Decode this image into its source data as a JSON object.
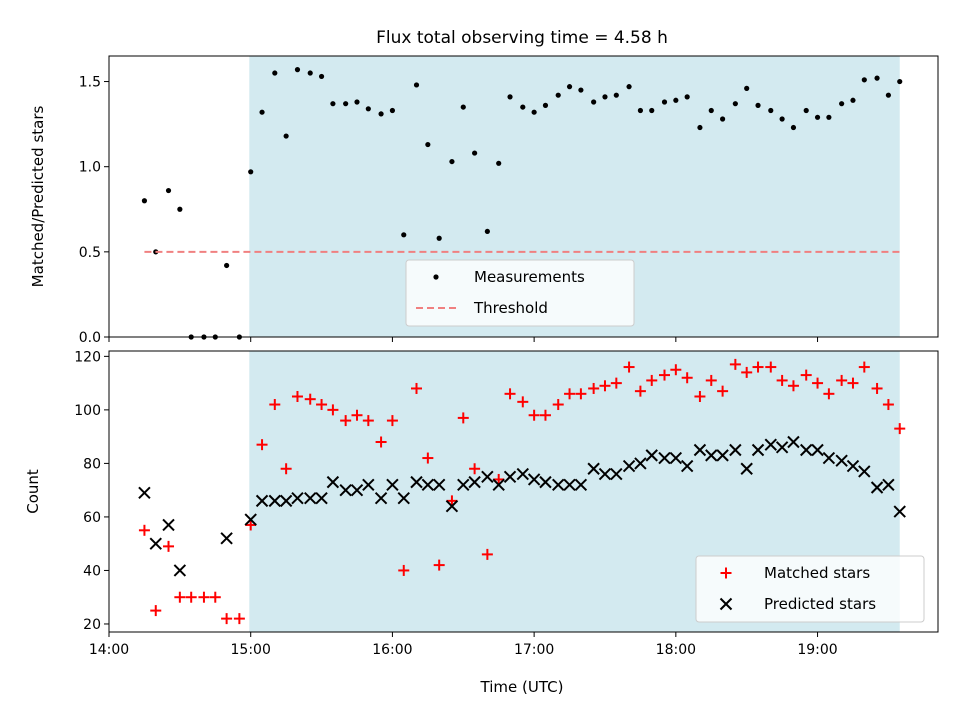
{
  "figure": {
    "title": "Flux total observing time = 4.58 h",
    "xlabel": "Time (UTC)",
    "xlim": [
      14.0,
      19.85
    ],
    "xticks": [
      14,
      15,
      16,
      17,
      18,
      19
    ],
    "xtick_labels": [
      "14:00",
      "15:00",
      "16:00",
      "17:00",
      "18:00",
      "19:00"
    ],
    "shaded_span": {
      "from": 14.99,
      "to": 19.58,
      "color": "#d3eaf0"
    }
  },
  "chart_data": [
    {
      "type": "scatter",
      "ylabel": "Matched/Predicted stars",
      "ylim": [
        0,
        1.65
      ],
      "yticks": [
        0.0,
        0.5,
        1.0,
        1.5
      ],
      "ytick_labels": [
        "0.0",
        "0.5",
        "1.0",
        "1.5"
      ],
      "legend_position": "lower-center",
      "series": [
        {
          "name": "Measurements",
          "color": "#000000",
          "marker": "dot",
          "points": [
            [
              14.25,
              0.8
            ],
            [
              14.33,
              0.5
            ],
            [
              14.42,
              0.86
            ],
            [
              14.5,
              0.75
            ],
            [
              14.58,
              0.0
            ],
            [
              14.67,
              0.0
            ],
            [
              14.75,
              0.0
            ],
            [
              14.83,
              0.42
            ],
            [
              14.92,
              0.0
            ],
            [
              15.0,
              0.97
            ],
            [
              15.08,
              1.32
            ],
            [
              15.17,
              1.55
            ],
            [
              15.25,
              1.18
            ],
            [
              15.33,
              1.57
            ],
            [
              15.42,
              1.55
            ],
            [
              15.5,
              1.53
            ],
            [
              15.58,
              1.37
            ],
            [
              15.67,
              1.37
            ],
            [
              15.75,
              1.38
            ],
            [
              15.83,
              1.34
            ],
            [
              15.92,
              1.31
            ],
            [
              16.0,
              1.33
            ],
            [
              16.08,
              0.6
            ],
            [
              16.17,
              1.48
            ],
            [
              16.25,
              1.13
            ],
            [
              16.33,
              0.58
            ],
            [
              16.42,
              1.03
            ],
            [
              16.5,
              1.35
            ],
            [
              16.58,
              1.08
            ],
            [
              16.67,
              0.62
            ],
            [
              16.75,
              1.02
            ],
            [
              16.83,
              1.41
            ],
            [
              16.92,
              1.35
            ],
            [
              17.0,
              1.32
            ],
            [
              17.08,
              1.36
            ],
            [
              17.17,
              1.42
            ],
            [
              17.25,
              1.47
            ],
            [
              17.33,
              1.45
            ],
            [
              17.42,
              1.38
            ],
            [
              17.5,
              1.41
            ],
            [
              17.58,
              1.42
            ],
            [
              17.67,
              1.47
            ],
            [
              17.75,
              1.33
            ],
            [
              17.83,
              1.33
            ],
            [
              17.92,
              1.38
            ],
            [
              18.0,
              1.39
            ],
            [
              18.08,
              1.41
            ],
            [
              18.17,
              1.23
            ],
            [
              18.25,
              1.33
            ],
            [
              18.33,
              1.28
            ],
            [
              18.42,
              1.37
            ],
            [
              18.5,
              1.46
            ],
            [
              18.58,
              1.36
            ],
            [
              18.67,
              1.33
            ],
            [
              18.75,
              1.28
            ],
            [
              18.83,
              1.23
            ],
            [
              18.92,
              1.33
            ],
            [
              19.0,
              1.29
            ],
            [
              19.08,
              1.29
            ],
            [
              19.17,
              1.37
            ],
            [
              19.25,
              1.39
            ],
            [
              19.33,
              1.51
            ],
            [
              19.42,
              1.52
            ],
            [
              19.5,
              1.42
            ],
            [
              19.58,
              1.5
            ]
          ]
        },
        {
          "name": "Threshold",
          "color": "#f08080",
          "style": "dashed",
          "points": [
            [
              14.25,
              0.5
            ],
            [
              19.58,
              0.5
            ]
          ]
        }
      ]
    },
    {
      "type": "scatter",
      "ylabel": "Count",
      "ylim": [
        17,
        122
      ],
      "yticks": [
        20,
        40,
        60,
        80,
        100,
        120
      ],
      "ytick_labels": [
        "20",
        "40",
        "60",
        "80",
        "100",
        "120"
      ],
      "legend_position": "lower-right",
      "series": [
        {
          "name": "Matched stars",
          "color": "#ff0000",
          "marker": "plus",
          "points": [
            [
              14.25,
              55
            ],
            [
              14.33,
              25
            ],
            [
              14.42,
              49
            ],
            [
              14.5,
              30
            ],
            [
              14.58,
              30
            ],
            [
              14.67,
              30
            ],
            [
              14.75,
              30
            ],
            [
              14.83,
              22
            ],
            [
              14.92,
              22
            ],
            [
              15.0,
              57
            ],
            [
              15.08,
              87
            ],
            [
              15.17,
              102
            ],
            [
              15.25,
              78
            ],
            [
              15.33,
              105
            ],
            [
              15.42,
              104
            ],
            [
              15.5,
              102
            ],
            [
              15.58,
              100
            ],
            [
              15.67,
              96
            ],
            [
              15.75,
              98
            ],
            [
              15.83,
              96
            ],
            [
              15.92,
              88
            ],
            [
              16.0,
              96
            ],
            [
              16.08,
              40
            ],
            [
              16.17,
              108
            ],
            [
              16.25,
              82
            ],
            [
              16.33,
              42
            ],
            [
              16.42,
              66
            ],
            [
              16.5,
              97
            ],
            [
              16.58,
              78
            ],
            [
              16.67,
              46
            ],
            [
              16.75,
              74
            ],
            [
              16.83,
              106
            ],
            [
              16.92,
              103
            ],
            [
              17.0,
              98
            ],
            [
              17.08,
              98
            ],
            [
              17.17,
              102
            ],
            [
              17.25,
              106
            ],
            [
              17.33,
              106
            ],
            [
              17.42,
              108
            ],
            [
              17.5,
              109
            ],
            [
              17.58,
              110
            ],
            [
              17.67,
              116
            ],
            [
              17.75,
              107
            ],
            [
              17.83,
              111
            ],
            [
              17.92,
              113
            ],
            [
              18.0,
              115
            ],
            [
              18.08,
              112
            ],
            [
              18.17,
              105
            ],
            [
              18.25,
              111
            ],
            [
              18.33,
              107
            ],
            [
              18.42,
              117
            ],
            [
              18.5,
              114
            ],
            [
              18.58,
              116
            ],
            [
              18.67,
              116
            ],
            [
              18.75,
              111
            ],
            [
              18.83,
              109
            ],
            [
              18.92,
              113
            ],
            [
              19.0,
              110
            ],
            [
              19.08,
              106
            ],
            [
              19.17,
              111
            ],
            [
              19.25,
              110
            ],
            [
              19.33,
              116
            ],
            [
              19.42,
              108
            ],
            [
              19.5,
              102
            ],
            [
              19.58,
              93
            ]
          ]
        },
        {
          "name": "Predicted stars",
          "color": "#000000",
          "marker": "x",
          "points": [
            [
              14.25,
              69
            ],
            [
              14.33,
              50
            ],
            [
              14.42,
              57
            ],
            [
              14.5,
              40
            ],
            [
              14.83,
              52
            ],
            [
              15.0,
              59
            ],
            [
              15.08,
              66
            ],
            [
              15.17,
              66
            ],
            [
              15.25,
              66
            ],
            [
              15.33,
              67
            ],
            [
              15.42,
              67
            ],
            [
              15.5,
              67
            ],
            [
              15.58,
              73
            ],
            [
              15.67,
              70
            ],
            [
              15.75,
              70
            ],
            [
              15.83,
              72
            ],
            [
              15.92,
              67
            ],
            [
              16.0,
              72
            ],
            [
              16.08,
              67
            ],
            [
              16.17,
              73
            ],
            [
              16.25,
              72
            ],
            [
              16.33,
              72
            ],
            [
              16.42,
              64
            ],
            [
              16.5,
              72
            ],
            [
              16.58,
              73
            ],
            [
              16.67,
              75
            ],
            [
              16.75,
              72
            ],
            [
              16.83,
              75
            ],
            [
              16.92,
              76
            ],
            [
              17.0,
              74
            ],
            [
              17.08,
              73
            ],
            [
              17.17,
              72
            ],
            [
              17.25,
              72
            ],
            [
              17.33,
              72
            ],
            [
              17.42,
              78
            ],
            [
              17.5,
              76
            ],
            [
              17.58,
              76
            ],
            [
              17.67,
              79
            ],
            [
              17.75,
              80
            ],
            [
              17.83,
              83
            ],
            [
              17.92,
              82
            ],
            [
              18.0,
              82
            ],
            [
              18.08,
              79
            ],
            [
              18.17,
              85
            ],
            [
              18.25,
              83
            ],
            [
              18.33,
              83
            ],
            [
              18.42,
              85
            ],
            [
              18.5,
              78
            ],
            [
              18.58,
              85
            ],
            [
              18.67,
              87
            ],
            [
              18.75,
              86
            ],
            [
              18.83,
              88
            ],
            [
              18.92,
              85
            ],
            [
              19.0,
              85
            ],
            [
              19.08,
              82
            ],
            [
              19.17,
              81
            ],
            [
              19.25,
              79
            ],
            [
              19.33,
              77
            ],
            [
              19.42,
              71
            ],
            [
              19.5,
              72
            ],
            [
              19.58,
              62
            ]
          ]
        }
      ]
    }
  ]
}
